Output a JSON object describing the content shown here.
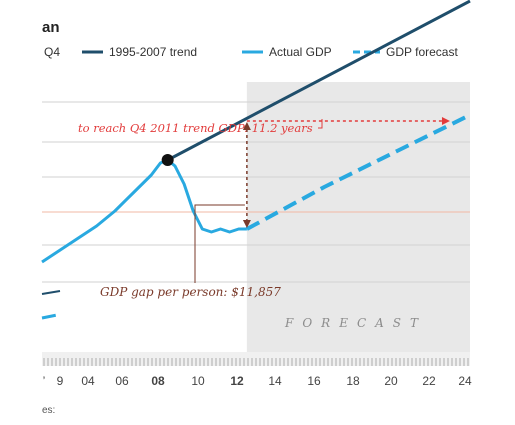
{
  "title_fragment": "an",
  "footnote_fragment": "es:",
  "legend": {
    "lead_label": "Q4",
    "items": [
      {
        "label": "1995-2007 trend",
        "color": "#1f4e6b",
        "style": "solid"
      },
      {
        "label": "Actual GDP",
        "color": "#29a9e0",
        "style": "solid"
      },
      {
        "label": "GDP forecast",
        "color": "#29a9e0",
        "style": "dashed"
      }
    ]
  },
  "chart_data": {
    "type": "line",
    "x_tick_labels": [
      "’",
      "9",
      "04",
      "06",
      "08",
      "10",
      "12",
      "14",
      "16",
      "18",
      "20",
      "22",
      "24"
    ],
    "xlim": [
      2000.5,
      2024
    ],
    "forecast_start": 2011.75,
    "forecast_label": "FORECAST",
    "series": [
      {
        "name": "1995-2007 trend",
        "color": "#1f4e6b",
        "points": [
          [
            2007.4,
            0.34
          ],
          [
            2024,
            0.87
          ]
        ]
      },
      {
        "name": "Actual GDP",
        "color": "#29a9e0",
        "points": [
          [
            2000.5,
            0.0
          ],
          [
            2001.5,
            0.04
          ],
          [
            2002.5,
            0.08
          ],
          [
            2003.5,
            0.12
          ],
          [
            2004.5,
            0.17
          ],
          [
            2005.5,
            0.23
          ],
          [
            2006.5,
            0.29
          ],
          [
            2007.0,
            0.33
          ],
          [
            2007.4,
            0.34
          ],
          [
            2007.8,
            0.32
          ],
          [
            2008.3,
            0.26
          ],
          [
            2008.8,
            0.17
          ],
          [
            2009.3,
            0.11
          ],
          [
            2009.8,
            0.1
          ],
          [
            2010.3,
            0.11
          ],
          [
            2010.8,
            0.1
          ],
          [
            2011.3,
            0.11
          ],
          [
            2011.75,
            0.11
          ]
        ]
      },
      {
        "name": "GDP forecast",
        "color": "#29a9e0",
        "points": [
          [
            2011.75,
            0.11
          ],
          [
            2016,
            0.25
          ],
          [
            2020,
            0.37
          ],
          [
            2024,
            0.49
          ]
        ]
      }
    ],
    "annotations": {
      "trend_gap_text": "to reach Q4 2011 trend GDP: 11.2 years",
      "gdp_gap_text": "GDP gap per person: $11,857",
      "trend_point": [
        2011.75,
        0.47
      ],
      "actual_point": [
        2011.75,
        0.11
      ],
      "reach_point": [
        2022.9,
        0.47
      ],
      "peak_point": [
        2007.4,
        0.34
      ],
      "colors": {
        "trend_gap": "#e23b3b",
        "gdp_gap": "#7a3a2a",
        "peak": "#111111"
      }
    }
  }
}
